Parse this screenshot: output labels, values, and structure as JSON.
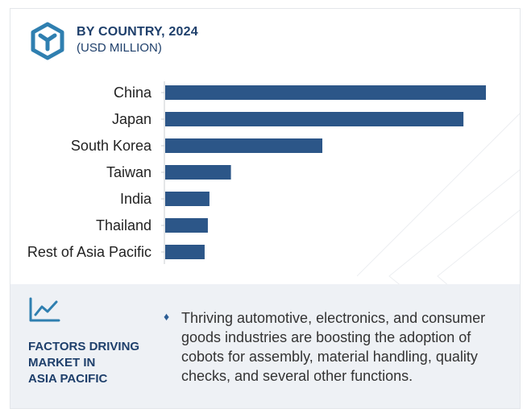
{
  "header": {
    "title": "BY COUNTRY, 2024",
    "subtitle": "(USD MILLION)"
  },
  "chart_data": {
    "type": "bar",
    "orientation": "horizontal",
    "categories": [
      "China",
      "Japan",
      "South Korea",
      "Taiwan",
      "India",
      "Thailand",
      "Rest of Asia Pacific"
    ],
    "values": [
      100,
      93,
      49,
      20.5,
      13.8,
      13.3,
      12.3
    ],
    "xlim": [
      0,
      100
    ],
    "bar_color": "#2c5688",
    "grid": false,
    "value_axis_labels": false
  },
  "factors": {
    "title_lines": [
      "FACTORS DRIVING",
      "MARKET IN",
      "ASIA PACIFIC"
    ],
    "bullet": "♦",
    "text": "Thriving automotive, electronics, and consumer goods industries are boosting the adoption of cobots for assembly, material handling, quality checks, and several other functions."
  },
  "colors": {
    "accent": "#1e3f6b",
    "logo": "#2f7fb0",
    "panel_bg": "#eef1f5"
  },
  "icons": {
    "logo": "cube-logo-icon",
    "trend": "trend-chart-icon"
  }
}
